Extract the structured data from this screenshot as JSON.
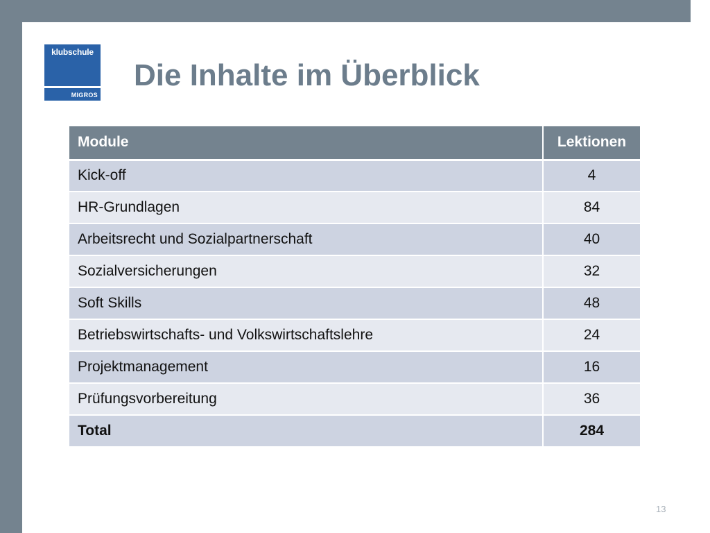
{
  "logo": {
    "top_text": "klubschule",
    "bottom_text": "MIGROS"
  },
  "slide": {
    "title": "Die Inhalte im Überblick",
    "page_number": "13"
  },
  "table": {
    "headers": [
      "Module",
      "Lektionen"
    ],
    "rows": [
      {
        "module": "Kick-off",
        "lektionen": "4"
      },
      {
        "module": "HR-Grundlagen",
        "lektionen": "84"
      },
      {
        "module": "Arbeitsrecht und Sozialpartnerschaft",
        "lektionen": "40"
      },
      {
        "module": "Sozialversicherungen",
        "lektionen": "32"
      },
      {
        "module": "Soft Skills",
        "lektionen": "48"
      },
      {
        "module": "Betriebswirtschafts- und Volkswirtschaftslehre",
        "lektionen": "24"
      },
      {
        "module": "Projektmanagement",
        "lektionen": "16"
      },
      {
        "module": "Prüfungsvorbereitung",
        "lektionen": "36"
      }
    ],
    "total": {
      "module": "Total",
      "lektionen": "284"
    }
  },
  "colors": {
    "frame": "#74838f",
    "title": "#6c7d8c",
    "logo": "#2a62a8",
    "header_bg": "#74838f",
    "row_odd": "#cdd3e1",
    "row_even": "#e6e9f0"
  }
}
